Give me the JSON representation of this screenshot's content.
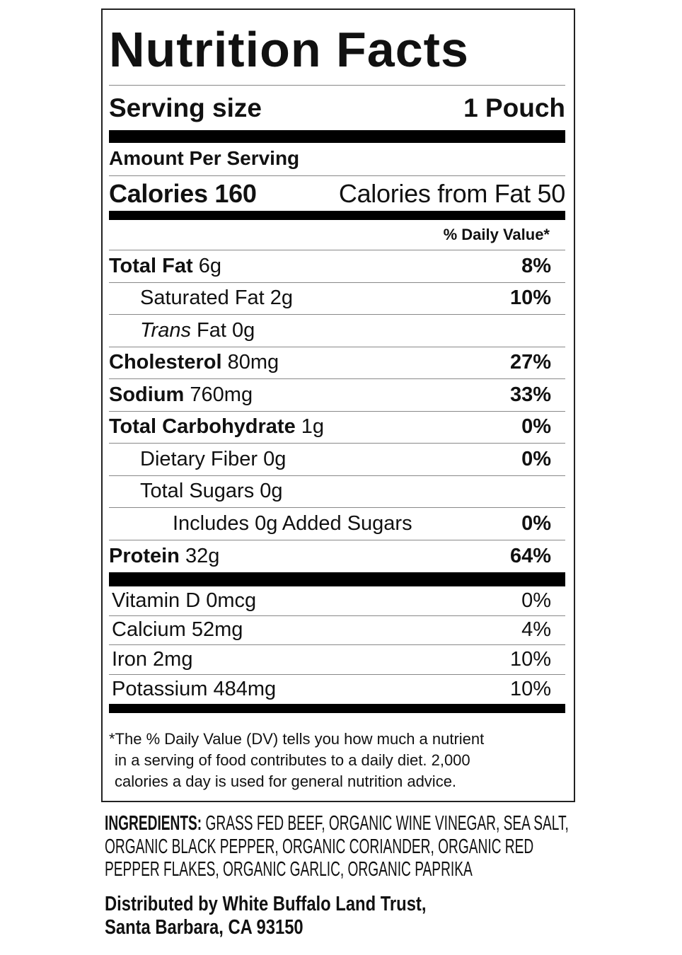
{
  "title": "Nutrition Facts",
  "serving": {
    "label": "Serving size",
    "value": "1 Pouch"
  },
  "amount_per_serving": "Amount Per Serving",
  "calories": {
    "label": "Calories",
    "value": "160",
    "from_fat_label": "Calories from Fat",
    "from_fat_value": "50"
  },
  "dv_header": "% Daily Value*",
  "nutrients": [
    {
      "name": "Total Fat",
      "amount": "6g",
      "dv": "8%",
      "bold": true,
      "indent": 0
    },
    {
      "name": "Saturated Fat",
      "amount": "2g",
      "dv": "10%",
      "bold": false,
      "indent": 1
    },
    {
      "name": "Trans",
      "name_suffix": " Fat",
      "amount": "0g",
      "dv": "",
      "bold": false,
      "indent": 1,
      "italic": true
    },
    {
      "name": "Cholesterol",
      "amount": "80mg",
      "dv": "27%",
      "bold": true,
      "indent": 0
    },
    {
      "name": "Sodium",
      "amount": "760mg",
      "dv": "33%",
      "bold": true,
      "indent": 0
    },
    {
      "name": "Total Carbohydrate",
      "amount": "1g",
      "dv": "0%",
      "bold": true,
      "indent": 0
    },
    {
      "name": "Dietary Fiber",
      "amount": "0g",
      "dv": "0%",
      "bold": false,
      "indent": 1
    },
    {
      "name": "Total Sugars",
      "amount": "0g",
      "dv": "",
      "bold": false,
      "indent": 1
    },
    {
      "name": "Includes 0g Added Sugars",
      "amount": "",
      "dv": "0%",
      "bold": false,
      "indent": 2
    },
    {
      "name": "Protein",
      "amount": "32g",
      "dv": "64%",
      "bold": true,
      "indent": 0
    }
  ],
  "vitamins": [
    {
      "name": "Vitamin D",
      "amount": "0mcg",
      "dv": "0%"
    },
    {
      "name": "Calcium",
      "amount": "52mg",
      "dv": "4%"
    },
    {
      "name": "Iron",
      "amount": "2mg",
      "dv": "10%"
    },
    {
      "name": "Potassium",
      "amount": "484mg",
      "dv": "10%"
    }
  ],
  "footnote": [
    "*The % Daily Value (DV) tells you how much a nutrient",
    "in a serving of food contributes to a daily diet. 2,000",
    "calories a day is used for general nutrition advice."
  ],
  "ingredients": {
    "label": "INGREDIENTS:",
    "text": " GRASS FED BEEF, ORGANIC WINE VINEGAR, SEA SALT, ORGANIC BLACK PEPPER, ORGANIC CORIANDER, ORGANIC RED PEPPER FLAKES, ORGANIC GARLIC, ORGANIC PAPRIKA"
  },
  "distributor": [
    "Distributed by White Buffalo Land Trust,",
    "Santa Barbara, CA 93150"
  ]
}
